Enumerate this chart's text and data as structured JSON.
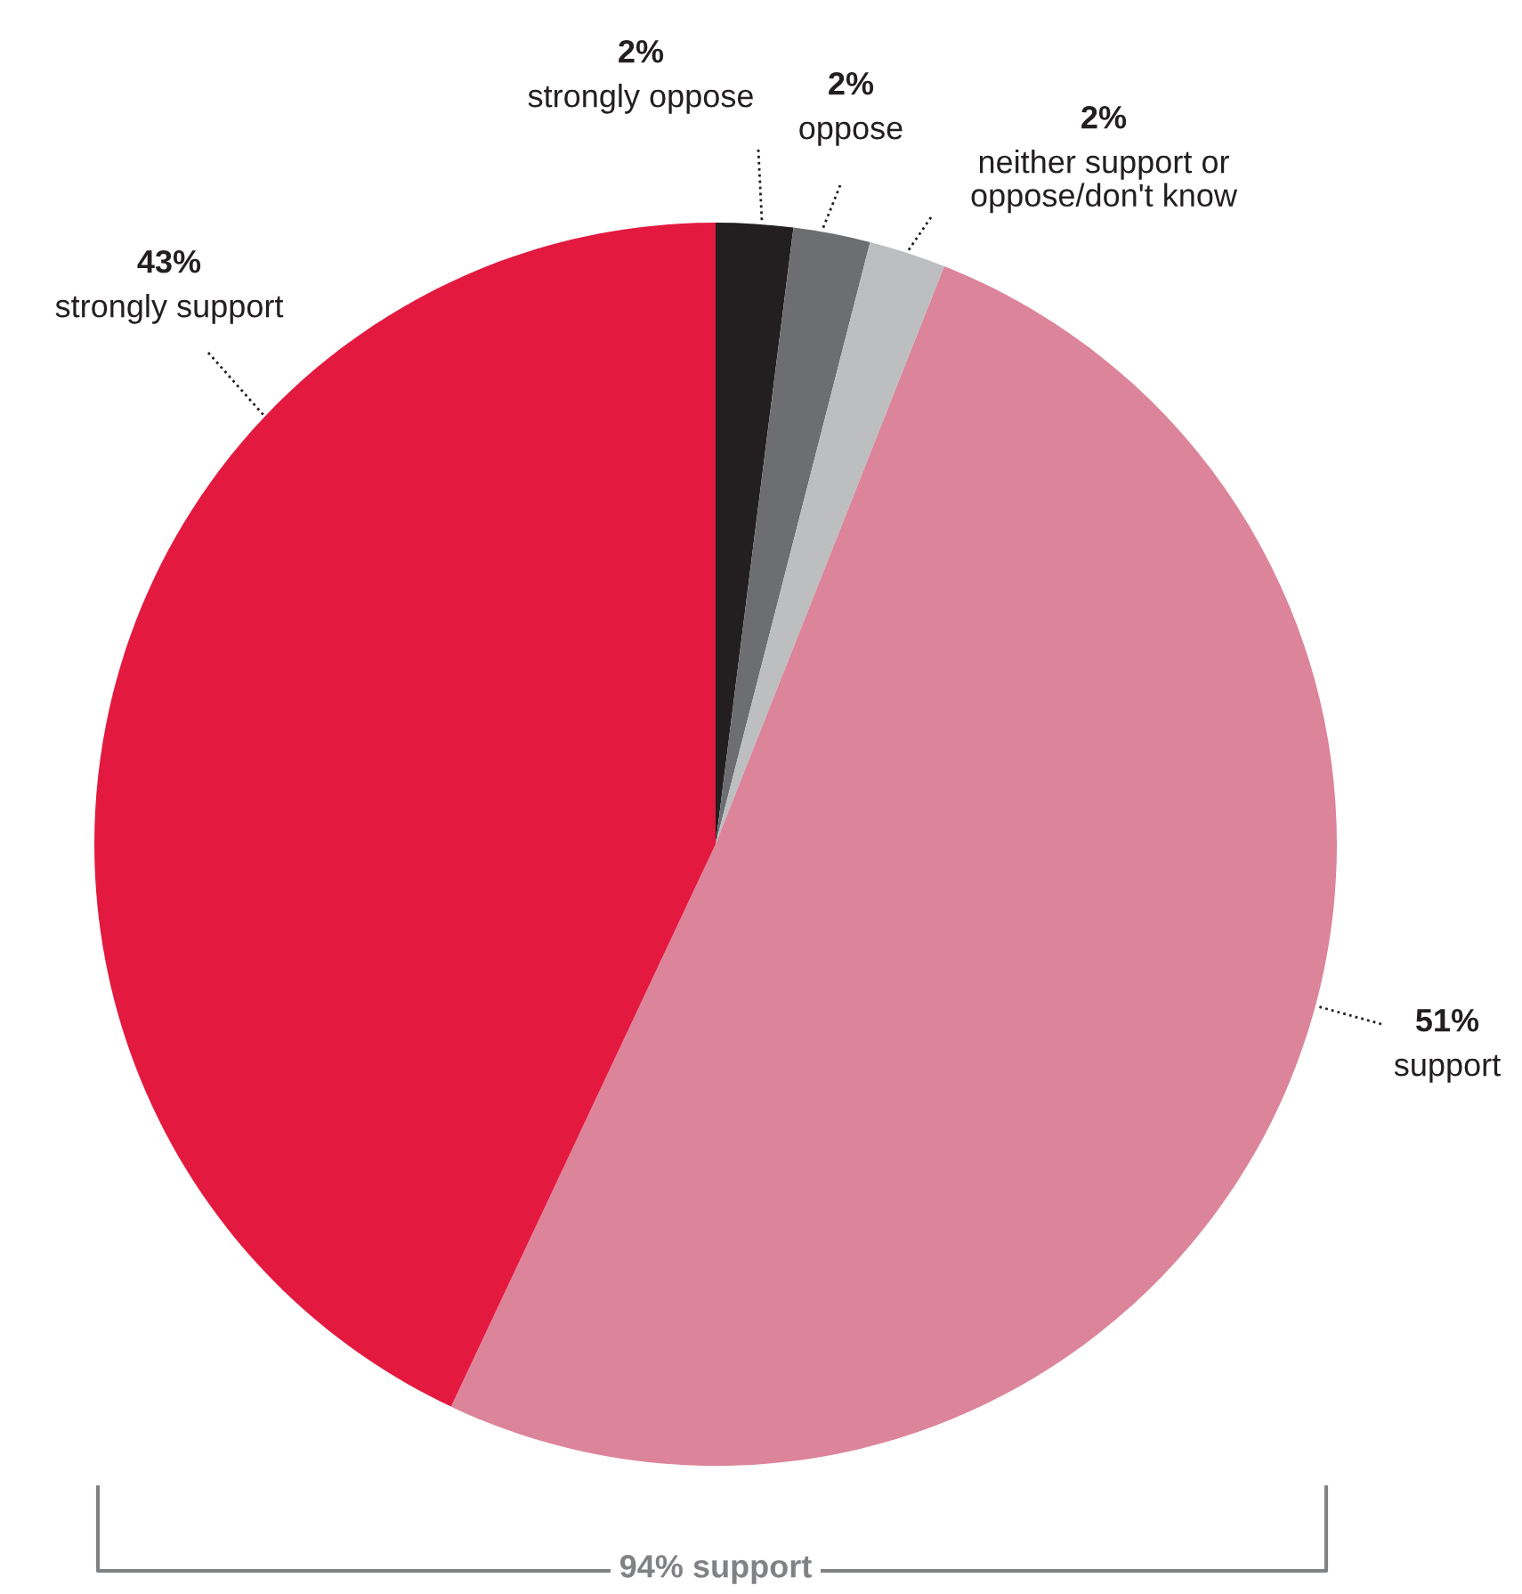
{
  "chart_data": {
    "type": "pie",
    "categories": [
      "strongly oppose",
      "oppose",
      "neither support or\noppose/don't know",
      "support",
      "strongly support"
    ],
    "values": [
      2,
      2,
      2,
      51,
      43
    ],
    "value_labels": [
      "2%",
      "2%",
      "2%",
      "51%",
      "43%"
    ],
    "colors": [
      "#231f20",
      "#6d6e71",
      "#bcbec0",
      "#dc849a",
      "#e31940"
    ],
    "annotations": [
      "94% support"
    ]
  }
}
